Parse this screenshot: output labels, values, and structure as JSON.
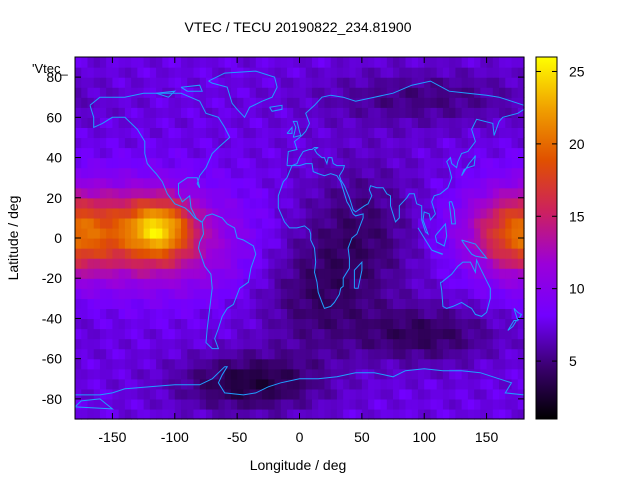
{
  "chart_data": {
    "type": "heatmap",
    "title": "VTEC / TECU 20190822_234.81900",
    "xlabel": "Longitude / deg",
    "ylabel": "Latitude / deg",
    "series_key": "'Vtec_",
    "xlim": [
      -180,
      180
    ],
    "ylim": [
      -90,
      90
    ],
    "x_ticks": [
      -150,
      -100,
      -50,
      0,
      50,
      100,
      150
    ],
    "y_ticks": [
      -80,
      -60,
      -40,
      -20,
      0,
      20,
      40,
      60,
      80
    ],
    "colorbar": {
      "range": [
        1,
        26
      ],
      "ticks": [
        5,
        10,
        15,
        20,
        25
      ],
      "palette": [
        "#000000",
        "#3a006e",
        "#7200ff",
        "#9b00d9",
        "#cc2060",
        "#e05000",
        "#f0a000",
        "#ffff00"
      ]
    },
    "grid": false,
    "coastline_color": "#1ea0ff",
    "cell_deg": [
      5,
      5
    ],
    "features": [
      {
        "name": "equatorial-anomaly-pacific",
        "lon": -113,
        "lat": 5,
        "peak": 25
      },
      {
        "name": "equatorial-band-west",
        "lon": -150,
        "lat": 5,
        "peak": 16
      },
      {
        "name": "equatorial-band-dateline",
        "lon": 170,
        "lat": 2,
        "peak": 15
      },
      {
        "name": "south-indian-trough",
        "lon": 110,
        "lat": -45,
        "peak": 3
      },
      {
        "name": "antarctic-trough",
        "lon": -40,
        "lat": -72,
        "peak": 2
      }
    ]
  }
}
